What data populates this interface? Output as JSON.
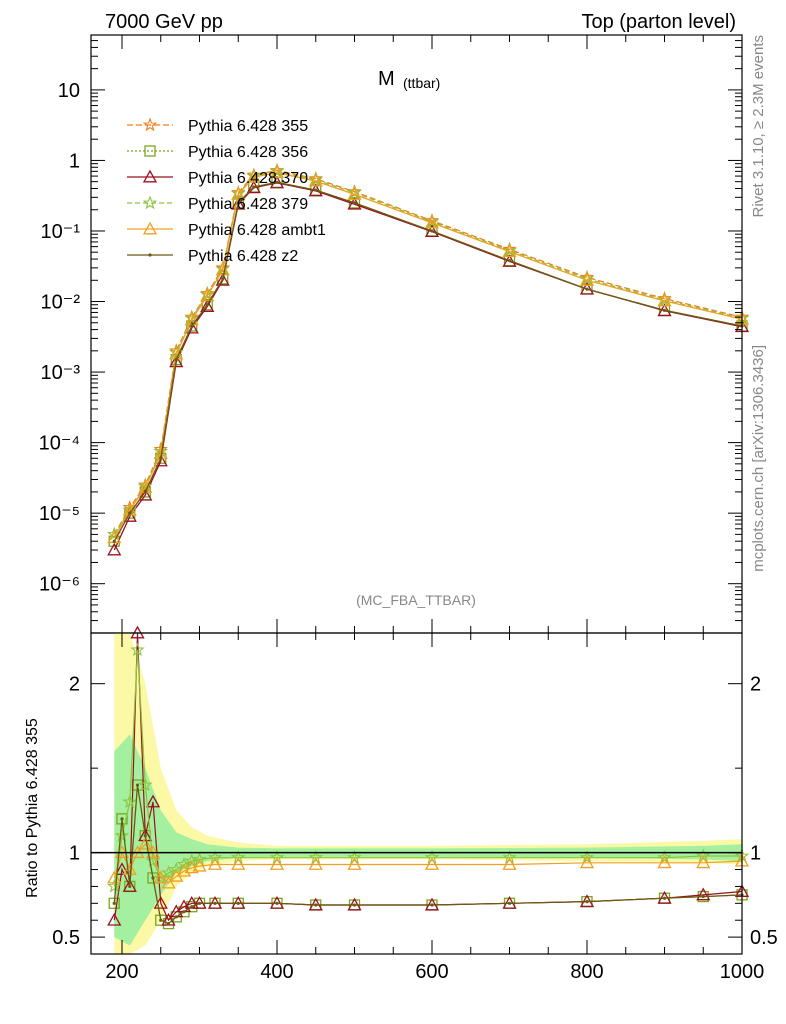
{
  "header": {
    "left": "7000 GeV pp",
    "right": "Top (parton level)"
  },
  "side_labels": {
    "upper": "Rivet 3.1.10, ≥ 2.3M events",
    "lower": "mcplots.cern.ch [arXiv:1306.3436]"
  },
  "chart_data": [
    {
      "type": "line",
      "panel": "main",
      "title": "M (ttbar)",
      "title_main": "M",
      "title_sub": "(ttbar)",
      "annotation": "(MC_FBA_TTBAR)",
      "y_scale": "log",
      "xlim": [
        160,
        1000
      ],
      "ylim": [
        2e-07,
        60
      ],
      "y_tick_labels": [
        "10",
        "1",
        "10⁻¹",
        "10⁻²",
        "10⁻³",
        "10⁻⁴",
        "10⁻⁵",
        "10⁻⁶"
      ],
      "y_tick_values": [
        10,
        1,
        0.1,
        0.01,
        0.001,
        0.0001,
        1e-05,
        1e-06
      ],
      "legend_placement": "top-left",
      "x": [
        190,
        210,
        230,
        250,
        270,
        290,
        310,
        330,
        350,
        370,
        400,
        450,
        500,
        600,
        700,
        800,
        900,
        1000
      ],
      "series": [
        {
          "name": "Pythia 6.428 355",
          "color": "#f07d1e",
          "dash": "6,3",
          "marker": "star",
          "values": [
            5e-06,
            1.2e-05,
            2.5e-05,
            8e-05,
            0.002,
            0.006,
            0.013,
            0.03,
            0.35,
            0.62,
            0.72,
            0.55,
            0.36,
            0.14,
            0.055,
            0.022,
            0.011,
            0.006
          ]
        },
        {
          "name": "Pythia 6.428 356",
          "color": "#7aa61c",
          "dash": "2,2",
          "marker": "square",
          "values": [
            4e-06,
            1e-05,
            2e-05,
            6e-05,
            0.0015,
            0.0045,
            0.009,
            0.021,
            0.25,
            0.42,
            0.49,
            0.38,
            0.25,
            0.1,
            0.038,
            0.015,
            0.0075,
            0.0045
          ]
        },
        {
          "name": "Pythia 6.428 370",
          "color": "#9b1020",
          "dash": "",
          "marker": "triangle",
          "values": [
            3e-06,
            9e-06,
            1.8e-05,
            5.5e-05,
            0.0014,
            0.0042,
            0.0085,
            0.02,
            0.24,
            0.41,
            0.48,
            0.37,
            0.24,
            0.098,
            0.037,
            0.015,
            0.0074,
            0.0044
          ]
        },
        {
          "name": "Pythia 6.428 379",
          "color": "#8cc43c",
          "dash": "5,3",
          "marker": "star",
          "values": [
            5e-06,
            1.1e-05,
            2.4e-05,
            7.5e-05,
            0.0019,
            0.0058,
            0.0125,
            0.029,
            0.34,
            0.6,
            0.7,
            0.53,
            0.35,
            0.135,
            0.053,
            0.021,
            0.0105,
            0.0058
          ]
        },
        {
          "name": "Pythia 6.428 ambt1",
          "color": "#f0a020",
          "dash": "",
          "marker": "triangle",
          "values": [
            4.5e-06,
            1.1e-05,
            2.3e-05,
            7e-05,
            0.0018,
            0.0055,
            0.012,
            0.028,
            0.33,
            0.58,
            0.67,
            0.51,
            0.33,
            0.13,
            0.051,
            0.02,
            0.0102,
            0.0056
          ]
        },
        {
          "name": "Pythia 6.428 z2",
          "color": "#6b5a14",
          "dash": "",
          "marker": "dot",
          "values": [
            4e-06,
            1e-05,
            2e-05,
            6e-05,
            0.0015,
            0.0045,
            0.009,
            0.021,
            0.25,
            0.42,
            0.49,
            0.38,
            0.25,
            0.1,
            0.038,
            0.015,
            0.0075,
            0.0045
          ]
        }
      ]
    },
    {
      "type": "line",
      "panel": "ratio",
      "ylabel": "Ratio to Pythia 6.428 355",
      "xlim": [
        160,
        1000
      ],
      "ylim": [
        0.4,
        2.3
      ],
      "x_tick_labels": [
        "200",
        "400",
        "600",
        "800",
        "1000"
      ],
      "x_tick_values": [
        200,
        400,
        600,
        800,
        1000
      ],
      "y_tick_labels": [
        "2",
        "1",
        "0.5"
      ],
      "y_tick_values": [
        2,
        1,
        0.5
      ],
      "reference_line": 1,
      "band": {
        "x": [
          190,
          210,
          230,
          250,
          270,
          290,
          310,
          350,
          400,
          600,
          800,
          950,
          1000
        ],
        "inner_low": [
          0.5,
          0.45,
          0.6,
          0.75,
          0.88,
          0.92,
          0.95,
          0.97,
          0.975,
          0.975,
          0.97,
          0.96,
          0.95
        ],
        "inner_high": [
          1.6,
          1.7,
          1.5,
          1.25,
          1.12,
          1.08,
          1.05,
          1.03,
          1.025,
          1.025,
          1.03,
          1.04,
          1.05
        ],
        "outer_low": [
          0.4,
          0.4,
          0.45,
          0.6,
          0.8,
          0.88,
          0.92,
          0.95,
          0.96,
          0.96,
          0.95,
          0.94,
          0.93
        ],
        "outer_high": [
          2.3,
          2.3,
          2.0,
          1.5,
          1.25,
          1.15,
          1.1,
          1.06,
          1.04,
          1.04,
          1.05,
          1.07,
          1.08
        ]
      },
      "x": [
        190,
        200,
        210,
        220,
        230,
        240,
        250,
        260,
        270,
        280,
        290,
        300,
        320,
        350,
        400,
        450,
        500,
        600,
        700,
        800,
        900,
        950,
        1000
      ],
      "series": [
        {
          "name": "Pythia 6.428 356",
          "color": "#7aa61c",
          "marker": "square",
          "values": [
            0.7,
            1.2,
            0.8,
            1.4,
            1.1,
            0.85,
            0.6,
            0.58,
            0.62,
            0.65,
            0.68,
            0.7,
            0.7,
            0.7,
            0.7,
            0.69,
            0.69,
            0.69,
            0.7,
            0.71,
            0.73,
            0.74,
            0.75
          ]
        },
        {
          "name": "Pythia 6.428 370",
          "color": "#9b1020",
          "marker": "triangle",
          "values": [
            0.6,
            0.9,
            0.8,
            2.3,
            1.1,
            1.3,
            0.7,
            0.6,
            0.65,
            0.68,
            0.7,
            0.7,
            0.7,
            0.7,
            0.7,
            0.69,
            0.69,
            0.69,
            0.7,
            0.71,
            0.73,
            0.75,
            0.77
          ]
        },
        {
          "name": "Pythia 6.428 379",
          "color": "#8cc43c",
          "marker": "star",
          "values": [
            0.8,
            1.1,
            1.3,
            2.2,
            1.4,
            0.95,
            0.85,
            0.88,
            0.9,
            0.93,
            0.95,
            0.96,
            0.97,
            0.97,
            0.97,
            0.97,
            0.97,
            0.97,
            0.97,
            0.97,
            0.97,
            0.98,
            0.98
          ]
        },
        {
          "name": "Pythia 6.428 ambt1",
          "color": "#f0a020",
          "marker": "triangle",
          "values": [
            0.85,
            1.0,
            0.9,
            1.0,
            1.05,
            1.0,
            0.85,
            0.82,
            0.86,
            0.89,
            0.91,
            0.92,
            0.93,
            0.93,
            0.93,
            0.93,
            0.93,
            0.93,
            0.93,
            0.94,
            0.94,
            0.94,
            0.95
          ]
        },
        {
          "name": "Pythia 6.428 z2",
          "color": "#6b5a14",
          "marker": "dot",
          "values": [
            0.7,
            1.2,
            0.8,
            1.4,
            1.1,
            0.85,
            0.6,
            0.58,
            0.62,
            0.65,
            0.68,
            0.7,
            0.7,
            0.7,
            0.7,
            0.69,
            0.69,
            0.69,
            0.7,
            0.71,
            0.73,
            0.74,
            0.75
          ]
        }
      ]
    }
  ]
}
